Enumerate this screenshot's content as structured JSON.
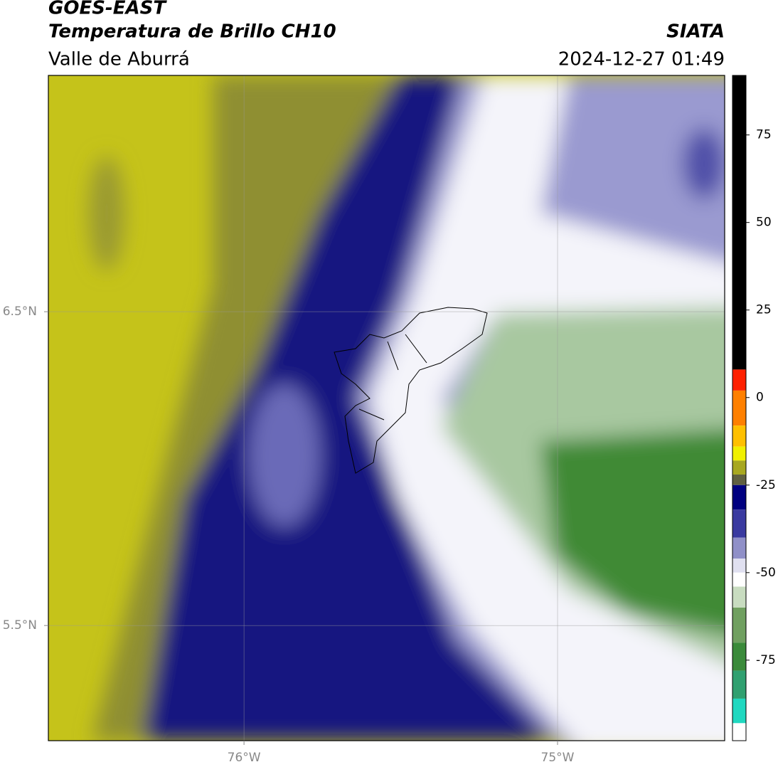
{
  "header": {
    "title": "GOES-EAST",
    "subtitle": "Temperatura de Brillo CH10",
    "region": "Valle de Aburrá",
    "source": "SIATA",
    "datetime": "2024-12-27 01:49"
  },
  "map": {
    "lonlim": [
      -76.624,
      -74.467
    ],
    "latlim": [
      5.133,
      7.253
    ],
    "lonticks": [
      {
        "value": -76,
        "label": "76°W"
      },
      {
        "value": -75,
        "label": "75°W"
      }
    ],
    "latticks": [
      {
        "value": 6.5,
        "label": "6.5°N"
      },
      {
        "value": 5.5,
        "label": "5.5°N"
      }
    ],
    "grid": true
  },
  "colorbar": {
    "lim": [
      -98,
      92
    ],
    "ticks": [
      75,
      50,
      25,
      0,
      -25,
      -50,
      -75
    ],
    "stops": [
      {
        "value": 92,
        "color": "#000000"
      },
      {
        "value": 8,
        "color": "#ff2000"
      },
      {
        "value": 2,
        "color": "#ff8000"
      },
      {
        "value": -8,
        "color": "#ffc000"
      },
      {
        "value": -14,
        "color": "#f0f000"
      },
      {
        "value": -18,
        "color": "#a8a820"
      },
      {
        "value": -22,
        "color": "#606040"
      },
      {
        "value": -25,
        "color": "#000080"
      },
      {
        "value": -32,
        "color": "#3a3aa0"
      },
      {
        "value": -40,
        "color": "#9090c8"
      },
      {
        "value": -46,
        "color": "#e0e0f0"
      },
      {
        "value": -50,
        "color": "#ffffff"
      },
      {
        "value": -54,
        "color": "#c8dcc0"
      },
      {
        "value": -60,
        "color": "#70a060"
      },
      {
        "value": -70,
        "color": "#3a8a3a"
      },
      {
        "value": -78,
        "color": "#30a070"
      },
      {
        "value": -86,
        "color": "#20d8c0"
      },
      {
        "value": -93,
        "color": "#ffffff"
      }
    ]
  }
}
